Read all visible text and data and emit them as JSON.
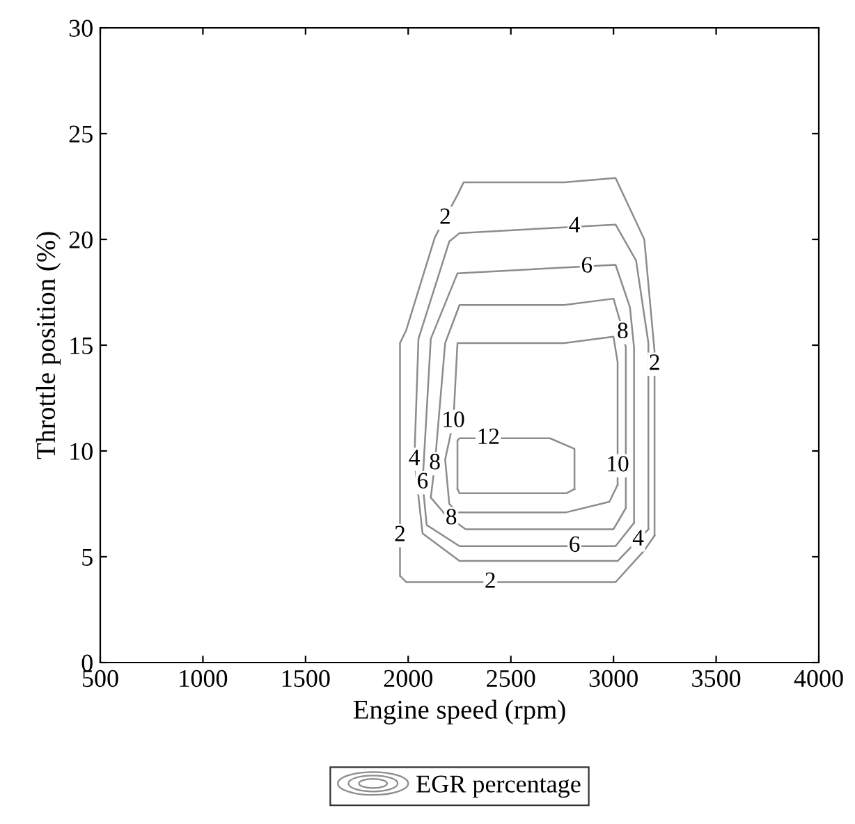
{
  "chart_data": {
    "type": "line",
    "xlabel": "Engine speed (rpm)",
    "ylabel": "Throttle position (%)",
    "legend_title": "EGR percentage",
    "grid": false,
    "marker": "none",
    "line_style": "solid",
    "xlim": [
      500,
      4000
    ],
    "xticks": [
      500,
      1000,
      1500,
      2000,
      2500,
      3000,
      3500,
      4000
    ],
    "ylim": [
      0,
      30
    ],
    "yticks": [
      0,
      5,
      10,
      15,
      20,
      25,
      30
    ],
    "series": [
      {
        "color": "#8c8c8c",
        "x": [
          1960,
          1960,
          1990,
          2130,
          2240,
          2270,
          2760,
          3010,
          3150,
          3200,
          3200
        ],
        "values": [
          4.1,
          15.1,
          15.7,
          20.1,
          22.1,
          22.7,
          22.7,
          22.9,
          20.0,
          14.7,
          6.0
        ]
      },
      {
        "color": "#8c8c8c",
        "x": [
          1960,
          1990,
          3010,
          3150,
          3200
        ],
        "values": [
          4.1,
          3.8,
          3.8,
          5.3,
          6.0
        ]
      },
      {
        "color": "#8c8c8c",
        "x": [
          2030,
          2050,
          2200,
          2250,
          3010,
          3110,
          3170,
          3170
        ],
        "values": [
          9.6,
          15.3,
          19.9,
          20.3,
          20.7,
          19.0,
          15.1,
          6.3
        ]
      },
      {
        "color": "#8c8c8c",
        "x": [
          2030,
          2070,
          2250,
          3020,
          3170
        ],
        "values": [
          9.6,
          6.1,
          4.8,
          4.8,
          6.3
        ]
      },
      {
        "color": "#8c8c8c",
        "x": [
          2070,
          2110,
          2240,
          3010,
          3080,
          3100,
          3100
        ],
        "values": [
          8.5,
          15.3,
          18.4,
          18.8,
          16.8,
          14.9,
          6.6
        ]
      },
      {
        "color": "#8c8c8c",
        "x": [
          2070,
          2090,
          2250,
          3010,
          3100
        ],
        "values": [
          8.5,
          6.5,
          5.5,
          5.5,
          6.6
        ]
      },
      {
        "color": "#8c8c8c",
        "x": [
          2110,
          2130,
          2180,
          2250,
          2760,
          3000,
          3030,
          3060,
          3060
        ],
        "values": [
          7.8,
          9.4,
          15.1,
          16.9,
          16.9,
          17.2,
          16.2,
          14.9,
          7.3
        ]
      },
      {
        "color": "#8c8c8c",
        "x": [
          2110,
          2180,
          2280,
          3000,
          3060
        ],
        "values": [
          7.8,
          7.0,
          6.3,
          6.3,
          7.3
        ]
      },
      {
        "color": "#8c8c8c",
        "x": [
          2220,
          2240,
          2760,
          3000,
          3020,
          3020
        ],
        "values": [
          11.4,
          15.1,
          15.1,
          15.4,
          14.2,
          8.4
        ]
      },
      {
        "color": "#8c8c8c",
        "x": [
          2220,
          2180,
          2200,
          2240,
          2770,
          2980,
          3020
        ],
        "values": [
          11.4,
          9.6,
          7.5,
          7.1,
          7.1,
          7.6,
          8.4
        ]
      },
      {
        "color": "#8c8c8c",
        "x": [
          2240,
          2240,
          2250,
          2690,
          2810,
          2810
        ],
        "values": [
          8.2,
          10.5,
          10.6,
          10.6,
          10.1,
          8.2
        ]
      },
      {
        "color": "#8c8c8c",
        "x": [
          2240,
          2250,
          2770,
          2810
        ],
        "values": [
          8.2,
          8.0,
          8.0,
          8.2
        ]
      }
    ],
    "annotations": [
      {
        "text": "2",
        "x": 2180,
        "y": 21.0
      },
      {
        "text": "4",
        "x": 2810,
        "y": 20.6
      },
      {
        "text": "6",
        "x": 2870,
        "y": 18.7
      },
      {
        "text": "8",
        "x": 3045,
        "y": 15.6
      },
      {
        "text": "2",
        "x": 3200,
        "y": 14.1
      },
      {
        "text": "10",
        "x": 2220,
        "y": 11.4
      },
      {
        "text": "12",
        "x": 2390,
        "y": 10.6
      },
      {
        "text": "10",
        "x": 3020,
        "y": 9.3
      },
      {
        "text": "4",
        "x": 2030,
        "y": 9.6
      },
      {
        "text": "8",
        "x": 2130,
        "y": 9.4
      },
      {
        "text": "6",
        "x": 2070,
        "y": 8.5
      },
      {
        "text": "8",
        "x": 2210,
        "y": 6.8
      },
      {
        "text": "6",
        "x": 2810,
        "y": 5.5
      },
      {
        "text": "4",
        "x": 3120,
        "y": 5.8
      },
      {
        "text": "2",
        "x": 1960,
        "y": 6.0
      },
      {
        "text": "2",
        "x": 2400,
        "y": 3.8
      }
    ]
  }
}
